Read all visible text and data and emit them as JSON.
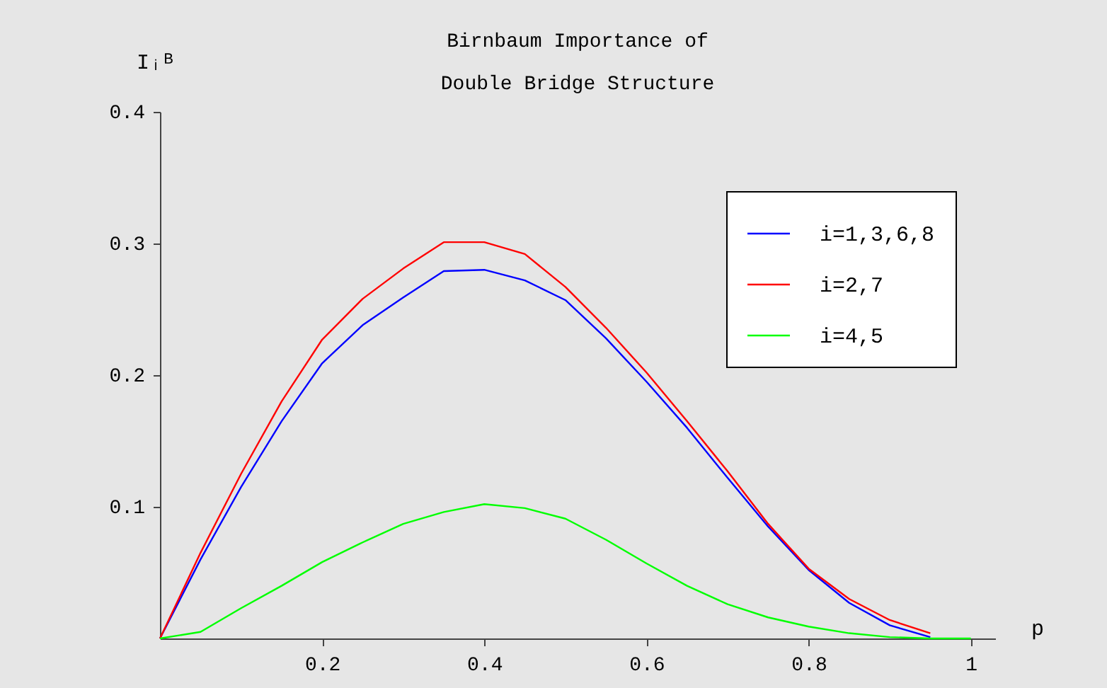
{
  "chart_data": {
    "type": "line",
    "title": "Birnbaum  Importance  of\nDouble  Bridge  Structure",
    "xlabel": "p",
    "ylabel": "Iᵢᴮ",
    "x": [
      0,
      0.05,
      0.1,
      0.15,
      0.2,
      0.25,
      0.3,
      0.35,
      0.4,
      0.45,
      0.5,
      0.55,
      0.6,
      0.65,
      0.7,
      0.75,
      0.8,
      0.85,
      0.9,
      0.95,
      1
    ],
    "series": [
      {
        "name": "i=1,3,6,8",
        "color": "#0000ff",
        "values": [
          0,
          0.06,
          0.115,
          0.165,
          0.209,
          0.238,
          0.259,
          0.279,
          0.28,
          0.272,
          0.257,
          0.228,
          0.195,
          0.16,
          0.122,
          0.085,
          0.052,
          0.027,
          0.01,
          0.001,
          null
        ]
      },
      {
        "name": "i=2,7",
        "color": "#ff0000",
        "values": [
          0,
          0.065,
          0.125,
          0.18,
          0.227,
          0.258,
          0.281,
          0.301,
          0.301,
          0.292,
          0.267,
          0.236,
          0.202,
          0.165,
          0.127,
          0.087,
          0.053,
          0.03,
          0.014,
          0.004,
          null
        ]
      },
      {
        "name": "i=4,5",
        "color": "#00ff00",
        "values": [
          0,
          0.005,
          0.023,
          0.04,
          0.058,
          0.073,
          0.087,
          0.096,
          0.102,
          0.099,
          0.091,
          0.075,
          0.057,
          0.04,
          0.026,
          0.016,
          0.009,
          0.004,
          0.001,
          0,
          0
        ]
      }
    ],
    "xlim": [
      0,
      1.03
    ],
    "ylim": [
      0,
      0.4
    ],
    "xticks": [
      0.2,
      0.4,
      0.6,
      0.8,
      {
        "value": 1,
        "label": "1"
      }
    ],
    "yticks": [
      0.1,
      0.2,
      0.3,
      0.4
    ],
    "grid": false,
    "legend": "top right",
    "marker": "none",
    "line_style": "solid"
  }
}
